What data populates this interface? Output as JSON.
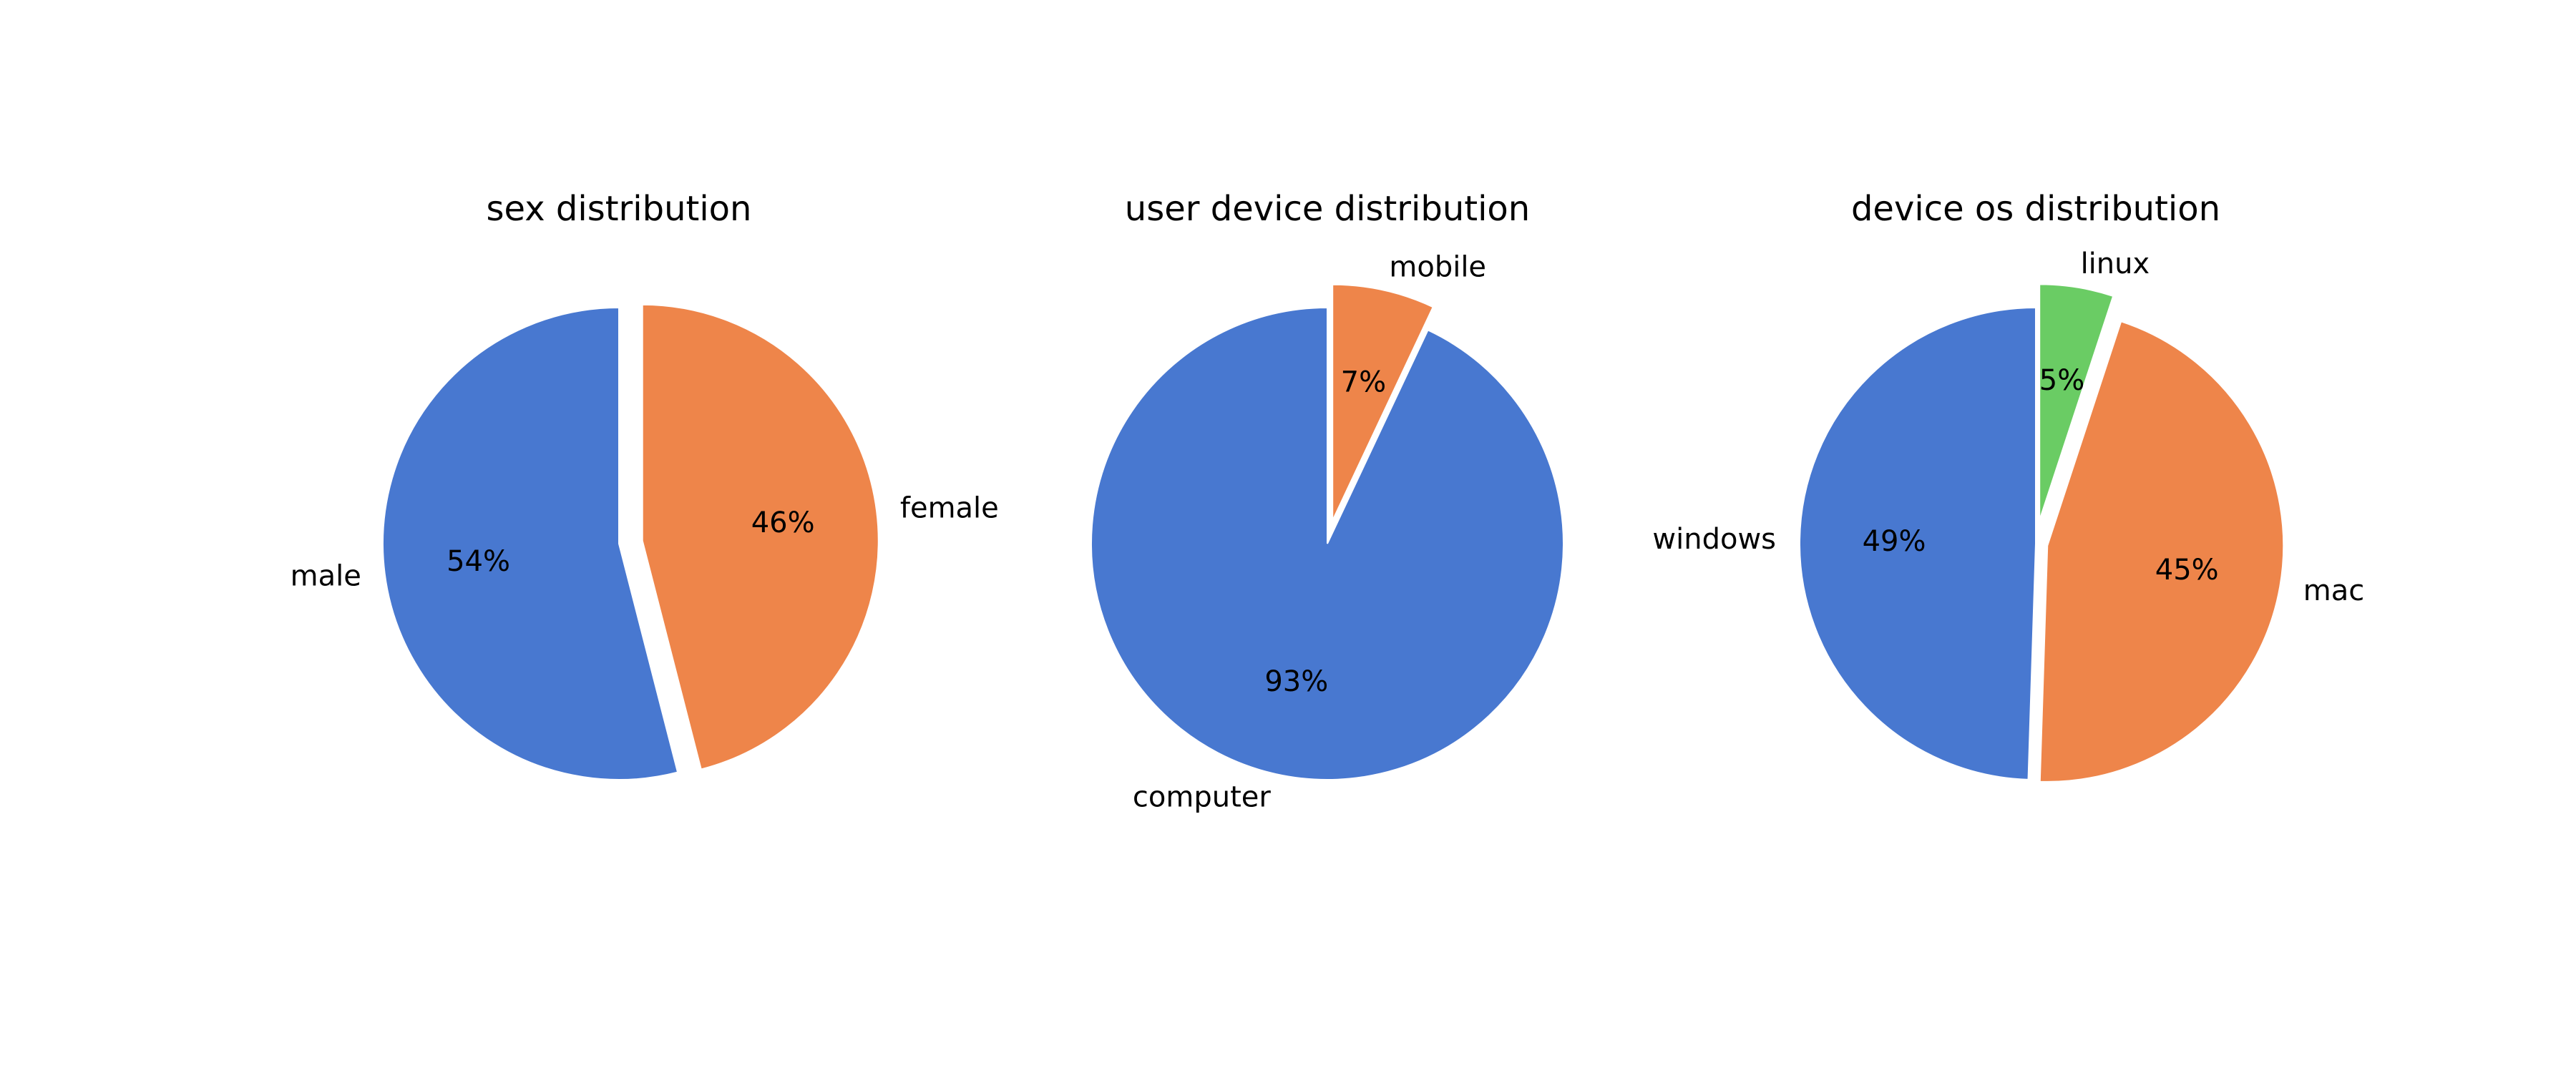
{
  "chart_data": [
    {
      "type": "pie",
      "title": "sex distribution",
      "start_angle": 90,
      "counterclock": true,
      "slices": [
        {
          "label": "male",
          "value": 54,
          "pct_text": "54%",
          "color": "#4878d0",
          "explode": 0
        },
        {
          "label": "female",
          "value": 46,
          "pct_text": "46%",
          "color": "#ee854a",
          "explode": 0.1
        }
      ]
    },
    {
      "type": "pie",
      "title": "user device distribution",
      "start_angle": 90,
      "counterclock": true,
      "slices": [
        {
          "label": "computer",
          "value": 93,
          "pct_text": "93%",
          "color": "#4878d0",
          "explode": 0
        },
        {
          "label": "mobile",
          "value": 7,
          "pct_text": "7%",
          "color": "#ee854a",
          "explode": 0.1
        }
      ]
    },
    {
      "type": "pie",
      "title": "device os distribution",
      "start_angle": 90,
      "counterclock": true,
      "slices": [
        {
          "label": "windows",
          "value": 49,
          "pct_text": "49%",
          "color": "#4878d0",
          "explode": 0
        },
        {
          "label": "mac",
          "value": 45,
          "pct_text": "45%",
          "color": "#ee854a",
          "explode": 0.05
        },
        {
          "label": "linux",
          "value": 5,
          "pct_text": "5%",
          "color": "#6acc64",
          "explode": 0.1
        }
      ]
    }
  ]
}
